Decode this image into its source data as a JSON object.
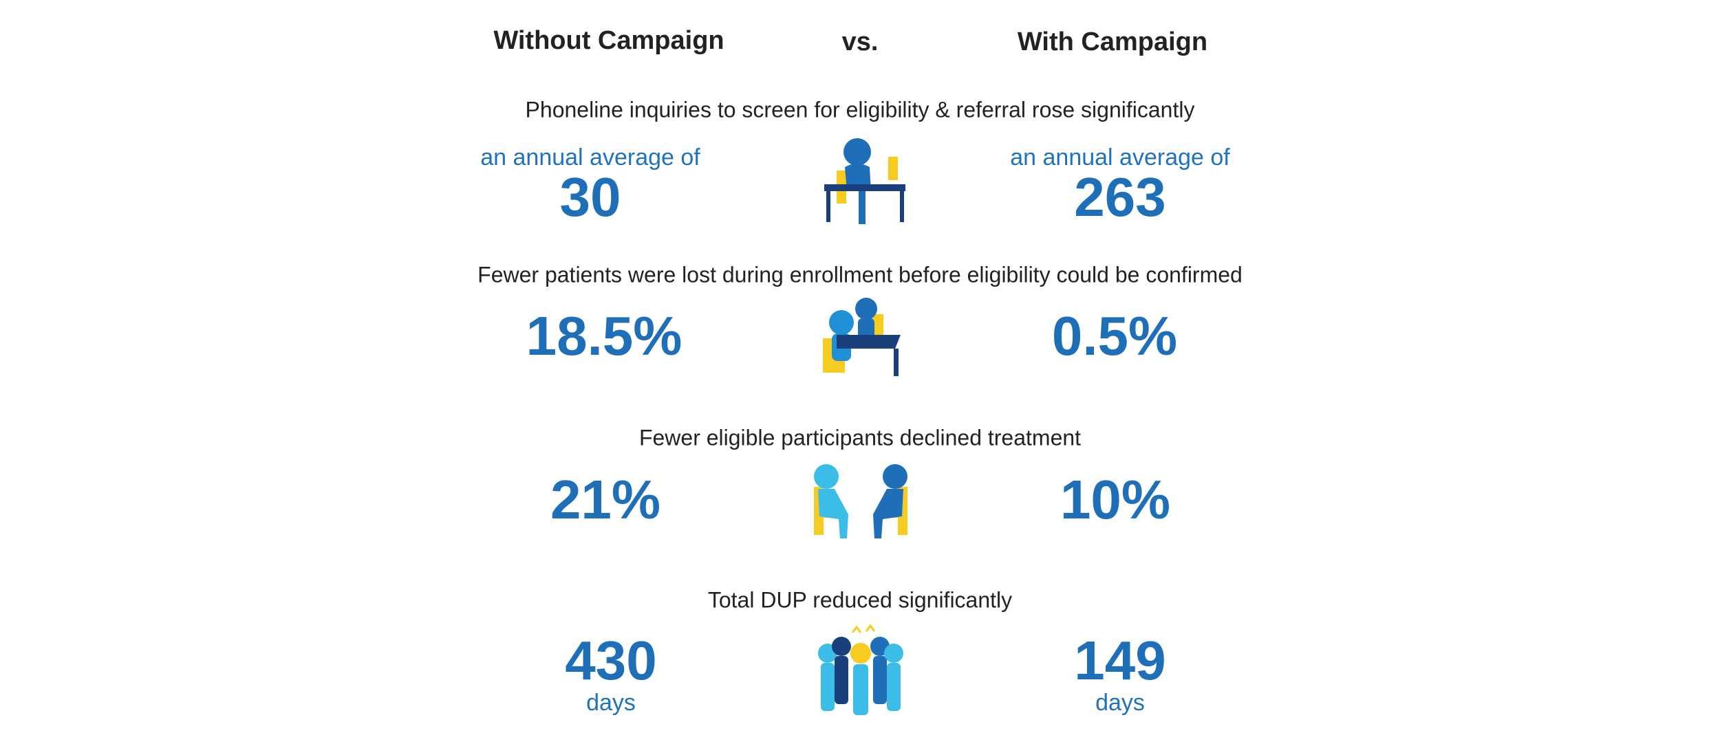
{
  "header": {
    "left": "Without Campaign",
    "middle": "vs.",
    "right": "With Campaign"
  },
  "rows": [
    {
      "heading": "Phoneline inquiries to screen for eligibility & referral rose significantly",
      "left": {
        "prefix": "an annual average of",
        "value": "30"
      },
      "right": {
        "prefix": "an annual average of",
        "value": "263"
      }
    },
    {
      "heading": "Fewer patients were lost during enrollment before eligibility could be confirmed",
      "left": {
        "value": "18.5%"
      },
      "right": {
        "value": "0.5%"
      }
    },
    {
      "heading": "Fewer eligible participants declined treatment",
      "left": {
        "value": "21%"
      },
      "right": {
        "value": "10%"
      }
    },
    {
      "heading": "Total DUP reduced significantly",
      "left": {
        "value": "430",
        "suffix": "days"
      },
      "right": {
        "value": "149",
        "suffix": "days"
      }
    }
  ]
}
